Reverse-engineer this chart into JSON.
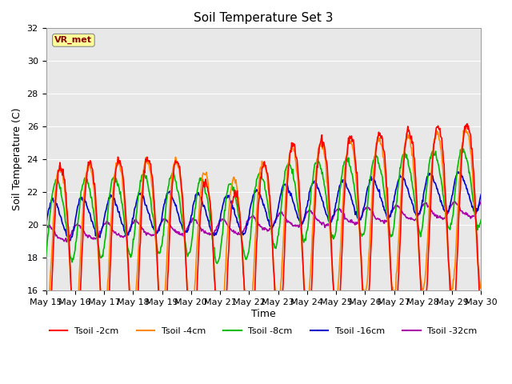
{
  "title": "Soil Temperature Set 3",
  "xlabel": "Time",
  "ylabel": "Soil Temperature (C)",
  "ylim": [
    16,
    32
  ],
  "n_days": 15,
  "yticks": [
    16,
    18,
    20,
    22,
    24,
    26,
    28,
    30,
    32
  ],
  "x_tick_labels": [
    "May 15",
    "May 16",
    "May 17",
    "May 18",
    "May 19",
    "May 20",
    "May 21",
    "May 22",
    "May 23",
    "May 24",
    "May 25",
    "May 26",
    "May 27",
    "May 28",
    "May 29",
    "May 30"
  ],
  "colors": {
    "Tsoil -2cm": "#ff0000",
    "Tsoil -4cm": "#ff8800",
    "Tsoil -8cm": "#00bb00",
    "Tsoil -16cm": "#0000cc",
    "Tsoil -32cm": "#aa00aa"
  },
  "annotation_text": "VR_met",
  "annotation_color": "#8b0000",
  "annotation_bg": "#ffff99",
  "background_color": "#e8e8e8",
  "grid_color": "#ffffff",
  "title_fontsize": 11,
  "axis_label_fontsize": 9,
  "tick_fontsize": 8,
  "legend_fontsize": 8,
  "linewidth": 1.2,
  "figsize": [
    6.4,
    4.8
  ],
  "dpi": 100
}
